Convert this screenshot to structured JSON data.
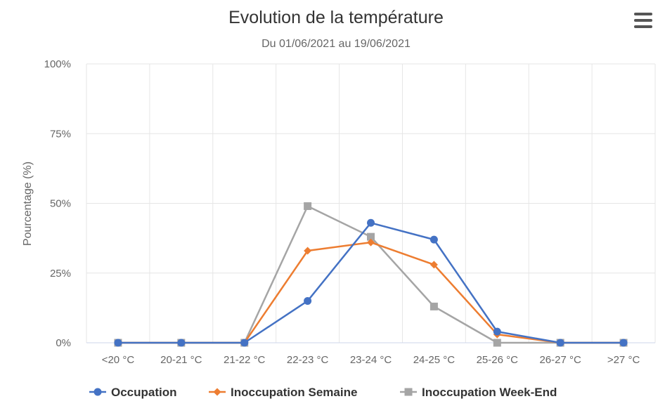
{
  "menu": {
    "icon": "hamburger-menu-icon"
  },
  "chart_data": {
    "type": "line",
    "title": "Evolution de la température",
    "subtitle": "Du 01/06/2021 au 19/06/2021",
    "xlabel": "",
    "ylabel": "Pourcentage (%)",
    "ylim": [
      0,
      100
    ],
    "yticks": [
      "0%",
      "25%",
      "50%",
      "75%",
      "100%"
    ],
    "categories": [
      "<20 °C",
      "20-21 °C",
      "21-22 °C",
      "22-23 °C",
      "23-24 °C",
      "24-25 °C",
      "25-26 °C",
      "26-27 °C",
      ">27 °C"
    ],
    "grid": true,
    "legend_position": "bottom",
    "series": [
      {
        "name": "Occupation",
        "color": "#4472c4",
        "marker": "circle",
        "values": [
          0,
          0,
          0,
          15,
          43,
          37,
          4,
          0,
          0
        ]
      },
      {
        "name": "Inoccupation Semaine",
        "color": "#ed7d31",
        "marker": "diamond",
        "values": [
          0,
          0,
          0,
          33,
          36,
          28,
          3,
          0,
          0
        ]
      },
      {
        "name": "Inoccupation Week-End",
        "color": "#a5a5a5",
        "marker": "square",
        "values": [
          0,
          0,
          0,
          49,
          38,
          13,
          0,
          0,
          0
        ]
      }
    ]
  }
}
